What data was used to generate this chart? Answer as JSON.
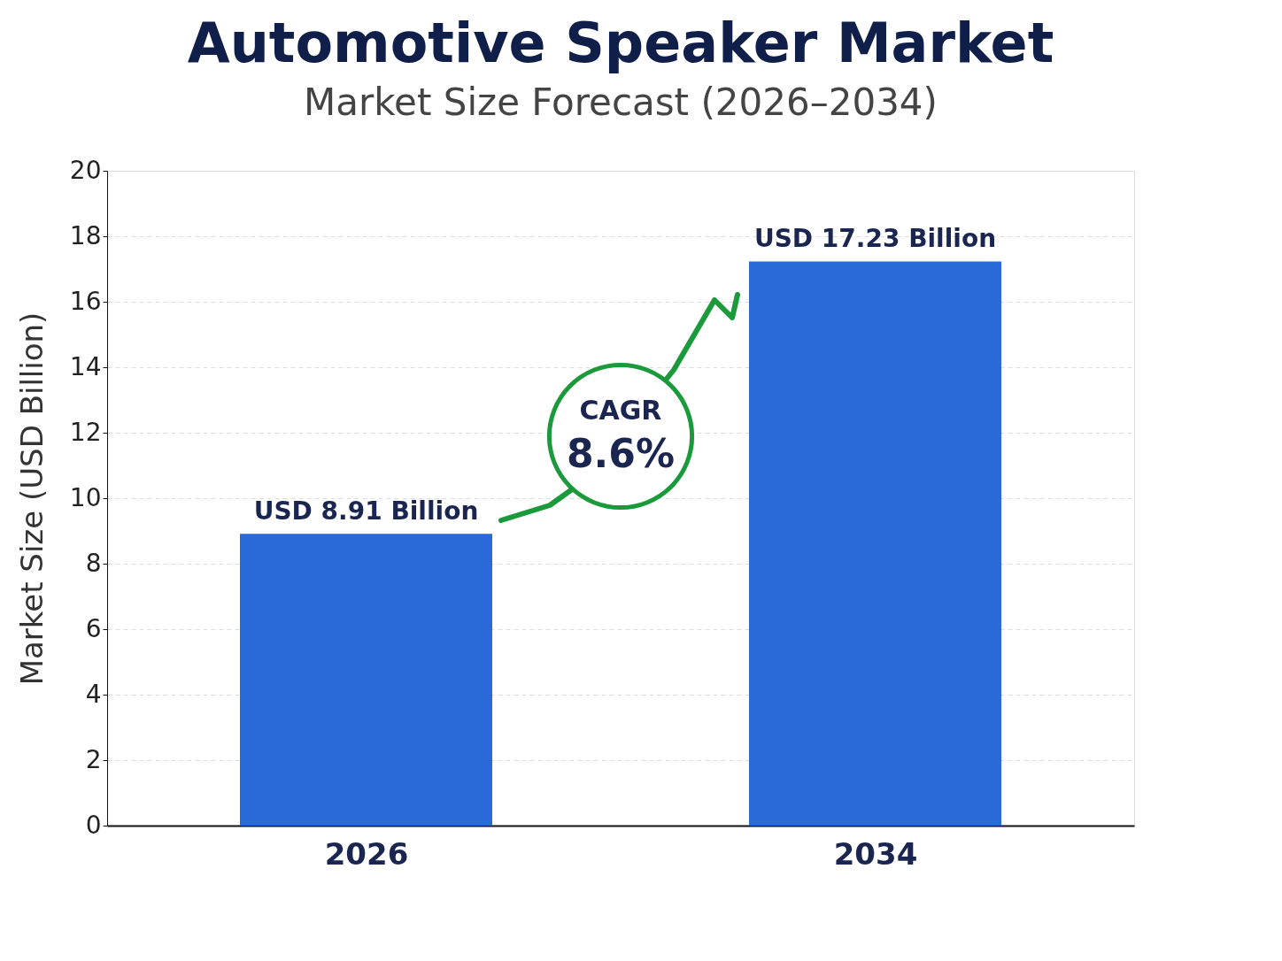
{
  "chart_data": {
    "type": "bar",
    "title": "Automotive Speaker Market",
    "subtitle": "Market Size Forecast (2026–2034)",
    "ylabel": "Market Size (USD Billion)",
    "categories": [
      "2026",
      "2034"
    ],
    "values": [
      8.91,
      17.23
    ],
    "value_labels": [
      "USD 8.91 Billion",
      "USD 17.23 Billion"
    ],
    "color": "#2a6ad8",
    "ylim": [
      0,
      20
    ],
    "yticks": [
      0,
      2,
      4,
      6,
      8,
      10,
      12,
      14,
      16,
      18,
      20
    ],
    "grid": "y",
    "annotations": [
      "CAGR",
      "8.6%"
    ]
  }
}
